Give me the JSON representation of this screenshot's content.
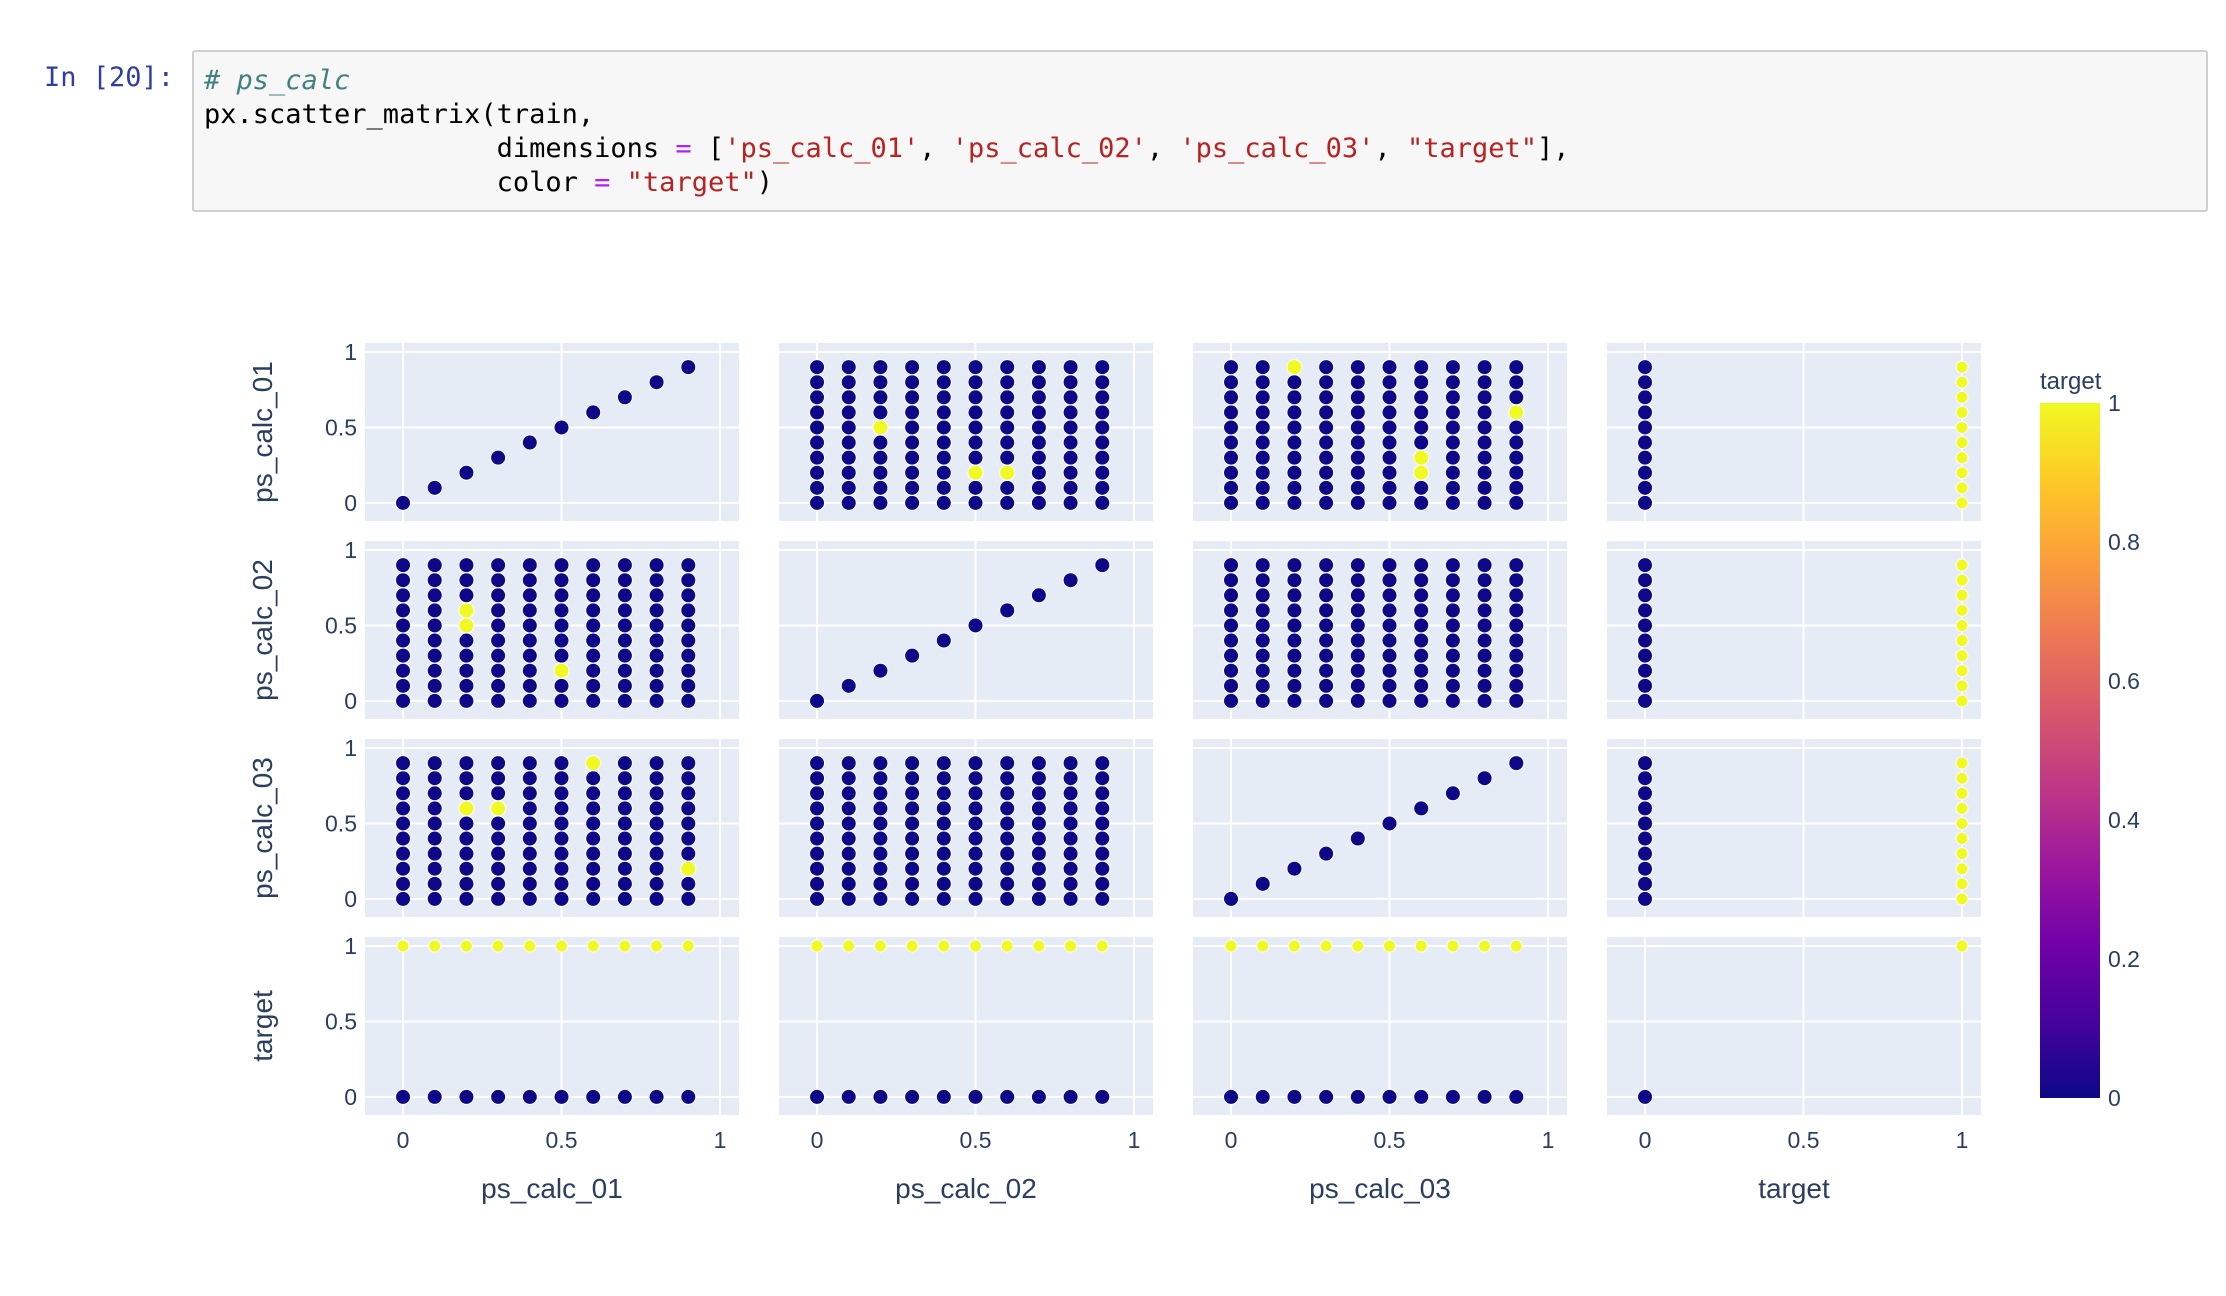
{
  "notebook": {
    "prompt": "In [20]:",
    "code": {
      "comment": "# ps_calc",
      "line2": "px.scatter_matrix(train,",
      "line3_pre": "                  dimensions ",
      "op": "=",
      "line3_open": " [",
      "dims": [
        "'ps_calc_01'",
        "'ps_calc_02'",
        "'ps_calc_03'",
        "\"target\""
      ],
      "sep": ", ",
      "line3_close": "],",
      "line4_pre": "                  color ",
      "line4_str": "\"target\"",
      "line4_close": ")"
    }
  },
  "chart_data": {
    "type": "scatter",
    "dimensions": [
      "ps_calc_01",
      "ps_calc_02",
      "ps_calc_03",
      "target"
    ],
    "grid_values": [
      0,
      0.1,
      0.2,
      0.3,
      0.4,
      0.5,
      0.6,
      0.7,
      0.8,
      0.9
    ],
    "axis_ticks": [
      "0",
      "0.5",
      "1"
    ],
    "axis_tick_values": [
      0,
      0.5,
      1
    ],
    "axis_range": [
      -0.12,
      1.06
    ],
    "target_1_points": {
      "ps_calc_01|ps_calc_02": [
        [
          0.2,
          0.5
        ],
        [
          0.5,
          0.2
        ],
        [
          0.6,
          0.2
        ]
      ],
      "ps_calc_01|ps_calc_03": [
        [
          0.2,
          0.9
        ],
        [
          0.6,
          0.3
        ],
        [
          0.6,
          0.2
        ],
        [
          0.9,
          0.6
        ]
      ],
      "ps_calc_02|ps_calc_01": [
        [
          0.2,
          0.6
        ],
        [
          0.2,
          0.5
        ],
        [
          0.5,
          0.2
        ]
      ],
      "ps_calc_03|ps_calc_01": [
        [
          0.2,
          0.6
        ],
        [
          0.3,
          0.6
        ],
        [
          0.6,
          0.9
        ],
        [
          0.9,
          0.2
        ]
      ]
    },
    "colorbar": {
      "title": "target",
      "ticks": [
        "0",
        "0.2",
        "0.4",
        "0.6",
        "0.8",
        "1"
      ],
      "tick_values": [
        0,
        0.2,
        0.4,
        0.6,
        0.8,
        1
      ],
      "colors": [
        "#0d0887",
        "#46039f",
        "#7201a8",
        "#9c179e",
        "#bd3786",
        "#d8576b",
        "#ed7953",
        "#fb9f3a",
        "#fdca26",
        "#f0f921"
      ]
    },
    "colors": {
      "background": "#e5ecf6",
      "grid": "#ffffff",
      "target_0": "#0d0887",
      "target_1": "#f0f921",
      "text": "#2a3f5f"
    },
    "grid": true,
    "legend": "colorbar-right"
  }
}
